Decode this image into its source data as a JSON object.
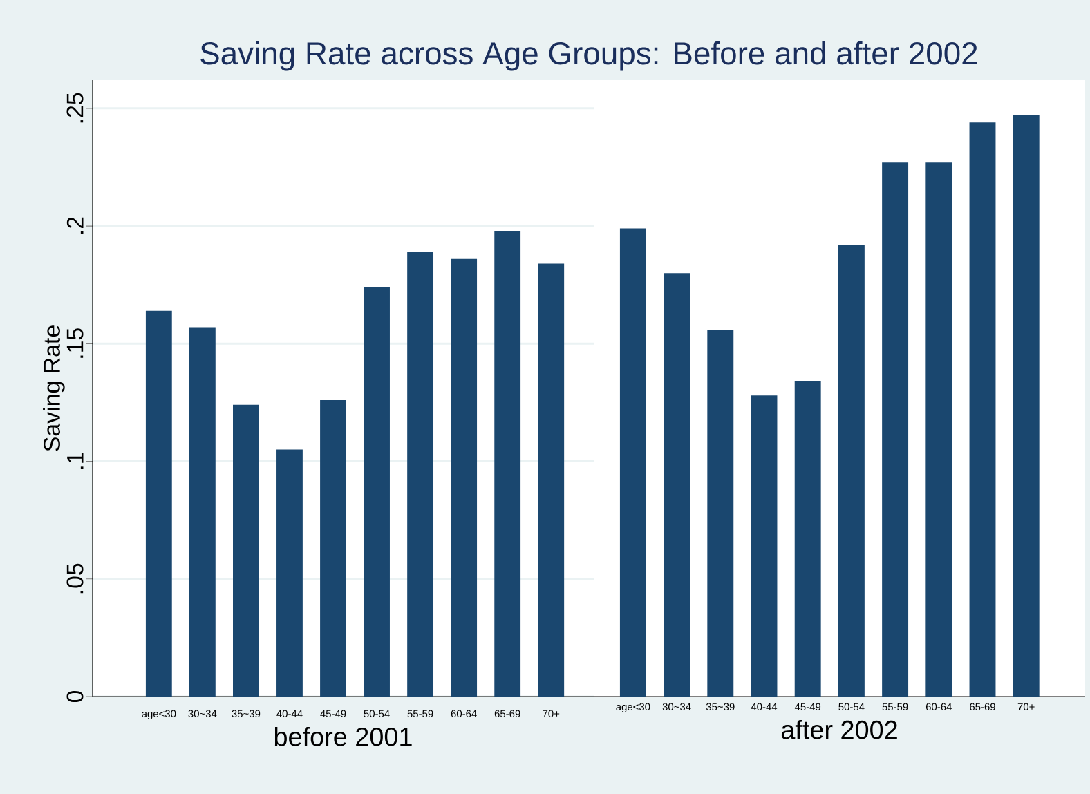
{
  "chart_data": [
    {
      "type": "bar",
      "title": "Saving Rate across Age Groups: Before and after 2002",
      "xlabel": "before 2001",
      "ylabel": "Saving Rate",
      "categories": [
        "age<30",
        "30~34",
        "35~39",
        "40-44",
        "45-49",
        "50-54",
        "55-59",
        "60-64",
        "65-69",
        "70+"
      ],
      "values": [
        0.164,
        0.157,
        0.124,
        0.105,
        0.126,
        0.174,
        0.189,
        0.186,
        0.198,
        0.184
      ],
      "color": "#1a476f",
      "ylim": [
        0,
        0.262
      ],
      "yticks": [
        0,
        {
          "value": 0.05,
          "label": ".05"
        },
        {
          "value": 0.1,
          "label": ".1"
        },
        {
          "value": 0.15,
          "label": ".15"
        },
        {
          "value": 0.2,
          "label": ".2"
        },
        {
          "value": 0.25,
          "label": ".25"
        }
      ],
      "grid": "y"
    },
    {
      "type": "bar",
      "xlabel": "after 2002",
      "categories": [
        "age<30",
        "30~34",
        "35~39",
        "40-44",
        "45-49",
        "50-54",
        "55-59",
        "60-64",
        "65-69",
        "70+"
      ],
      "values": [
        0.199,
        0.18,
        0.156,
        0.128,
        0.134,
        0.192,
        0.227,
        0.227,
        0.244,
        0.247
      ],
      "color": "#1a476f",
      "ylim": [
        0,
        0.262
      ],
      "yticks": [
        0,
        {
          "value": 0.05,
          "label": null
        },
        {
          "value": 0.1,
          "label": null
        },
        {
          "value": 0.15,
          "label": null
        },
        {
          "value": 0.2,
          "label": null
        },
        {
          "value": 0.25,
          "label": null
        }
      ],
      "grid": "y",
      "tick_labels": "x"
    }
  ]
}
